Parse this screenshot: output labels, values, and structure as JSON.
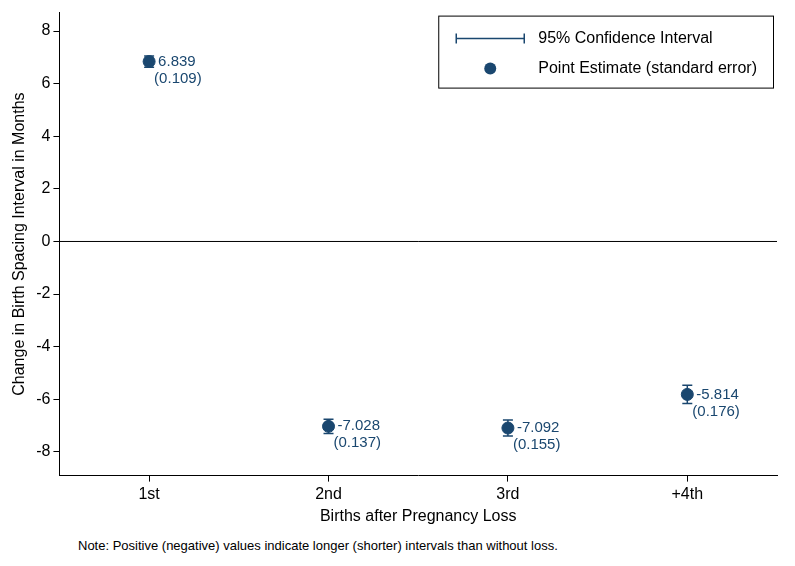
{
  "chart_data": {
    "type": "scatter",
    "x_label": "Births after Pregnancy Loss",
    "y_label": "Change in Birth Spacing Interval in Months",
    "note": "Note: Positive (negative) values indicate longer (shorter) intervals than without loss.",
    "categories": [
      "1st",
      "2nd",
      "3rd",
      "+4th"
    ],
    "series": [
      {
        "name": "95% Confidence Interval",
        "type": "errorbar",
        "color": "#1a476f",
        "lower": [
          6.625,
          -7.297,
          -7.396,
          -6.159
        ],
        "upper": [
          7.053,
          -6.759,
          -6.788,
          -5.469
        ]
      },
      {
        "name": "Point Estimate (standard error)",
        "type": "scatter",
        "color": "#1a476f",
        "marker": "circle",
        "values": [
          6.839,
          -7.028,
          -7.092,
          -5.814
        ],
        "standard_errors": [
          {
            "value": 0.109,
            "label": "(0.109)"
          },
          {
            "value": 0.137,
            "label": "(0.137)"
          },
          {
            "value": 0.155,
            "label": "(0.155)"
          },
          {
            "value": 0.176,
            "label": "(0.176)"
          }
        ]
      }
    ],
    "ylim": [
      -8.9,
      8.7
    ],
    "yticks": [
      -8,
      -6,
      -4,
      -2,
      0,
      2,
      4,
      6,
      8
    ],
    "reference_line": 0,
    "grid": false,
    "legend": "upper right",
    "data_labels": true
  }
}
